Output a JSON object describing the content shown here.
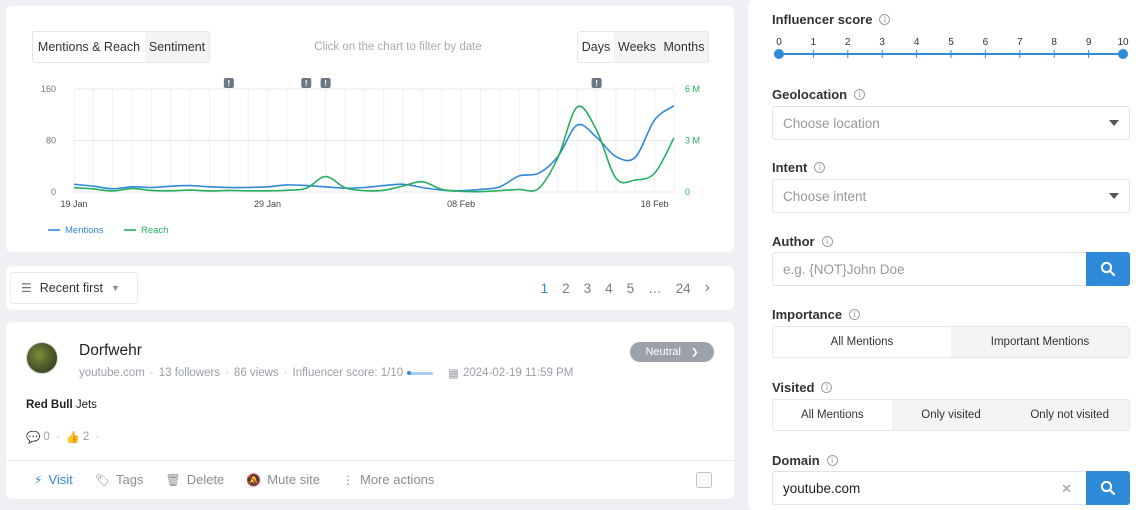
{
  "chart_tabs": {
    "mentions_reach": "Mentions & Reach",
    "sentiment": "Sentiment"
  },
  "chart_hint": "Click on the chart to filter by date",
  "time_tabs": {
    "days": "Days",
    "weeks": "Weeks",
    "months": "Months"
  },
  "chart_data": {
    "type": "line",
    "x": [
      "19 Jan",
      "20 Jan",
      "21 Jan",
      "22 Jan",
      "23 Jan",
      "24 Jan",
      "25 Jan",
      "26 Jan",
      "27 Jan",
      "28 Jan",
      "29 Jan",
      "30 Jan",
      "31 Jan",
      "01 Feb",
      "02 Feb",
      "03 Feb",
      "04 Feb",
      "05 Feb",
      "06 Feb",
      "07 Feb",
      "08 Feb",
      "09 Feb",
      "10 Feb",
      "11 Feb",
      "12 Feb",
      "13 Feb",
      "14 Feb",
      "15 Feb",
      "16 Feb",
      "17 Feb",
      "18 Feb",
      "19 Feb"
    ],
    "xticks": [
      "19 Jan",
      "29 Jan",
      "08 Feb",
      "18 Feb"
    ],
    "y_left_ticks": [
      "160",
      "80",
      "0"
    ],
    "y_right_ticks": [
      "6 M",
      "3 M",
      "0"
    ],
    "ylim_left": [
      0,
      160
    ],
    "ylim_right": [
      0,
      6000000
    ],
    "grid": true,
    "legend": "bottom-left",
    "series": [
      {
        "name": "Mentions",
        "axis": "left",
        "color": "#2f89d9",
        "values": [
          12,
          9,
          5,
          8,
          7,
          9,
          10,
          8,
          7,
          7,
          8,
          11,
          10,
          8,
          6,
          7,
          10,
          12,
          7,
          3,
          2,
          4,
          8,
          25,
          29,
          55,
          104,
          85,
          55,
          54,
          112,
          134
        ]
      },
      {
        "name": "Reach",
        "axis": "right",
        "color": "#27ae60",
        "values": [
          250000,
          180000,
          60000,
          200000,
          90000,
          70000,
          110000,
          60000,
          90000,
          70000,
          70000,
          100000,
          220000,
          900000,
          250000,
          80000,
          100000,
          350000,
          600000,
          150000,
          40000,
          20000,
          80000,
          150000,
          200000,
          2000000,
          4950000,
          3600000,
          800000,
          700000,
          1100000,
          3150000
        ]
      }
    ],
    "alerts": [
      "!",
      "!",
      "!",
      "!"
    ]
  },
  "sort": {
    "label": "Recent first"
  },
  "pagination": [
    "1",
    "2",
    "3",
    "4",
    "5",
    "…",
    "24"
  ],
  "mention": {
    "author": "Dorfwehr",
    "domain": "youtube.com",
    "followers": "13 followers",
    "views": "86 views",
    "influencer_score": "Influencer score: 1/10",
    "influencer_level": 0.1,
    "date": "2024-02-19 11:59 PM",
    "sentiment": "Neutral",
    "title_bold": "Red Bull",
    "title_rest": " Jets",
    "comments": "0",
    "likes": "2",
    "actions": {
      "visit": "Visit",
      "tags": "Tags",
      "delete": "Delete",
      "mute": "Mute site",
      "more": "More actions"
    }
  },
  "filters": {
    "influencer": {
      "label": "Influencer score",
      "ticks": [
        "0",
        "1",
        "2",
        "3",
        "4",
        "5",
        "6",
        "7",
        "8",
        "9",
        "10"
      ],
      "range": [
        0,
        10
      ]
    },
    "geolocation": {
      "label": "Geolocation",
      "placeholder": "Choose location"
    },
    "intent": {
      "label": "Intent",
      "placeholder": "Choose intent"
    },
    "author": {
      "label": "Author",
      "placeholder": "e.g. {NOT}John Doe"
    },
    "importance": {
      "label": "Importance",
      "options": [
        "All Mentions",
        "Important Mentions"
      ],
      "selected": 0
    },
    "visited": {
      "label": "Visited",
      "options": [
        "All Mentions",
        "Only visited",
        "Only not visited"
      ],
      "selected": 0
    },
    "domain": {
      "label": "Domain",
      "value": "youtube.com"
    }
  }
}
